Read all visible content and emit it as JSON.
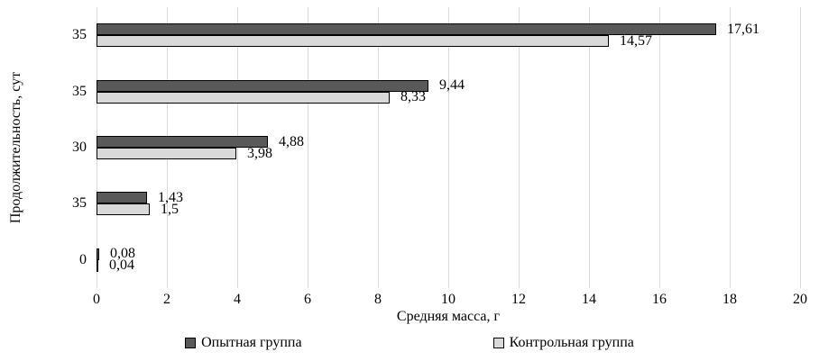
{
  "chart_data": {
    "type": "bar",
    "orientation": "horizontal",
    "categories": [
      "35",
      "35",
      "30",
      "35",
      "0"
    ],
    "series": [
      {
        "name": "Опытная группа",
        "color": "#595959",
        "values": [
          17.61,
          9.44,
          4.88,
          1.43,
          0.08
        ],
        "labels": [
          "17,61",
          "9,44",
          "4,88",
          "1,43",
          "0,08"
        ]
      },
      {
        "name": "Контрольная группа",
        "color": "#d9d9d9",
        "values": [
          14.57,
          8.33,
          3.98,
          1.5,
          0.04
        ],
        "labels": [
          "14,57",
          "8,33",
          "3,98",
          "1,5",
          "0,04"
        ]
      }
    ],
    "xlabel": "Средняя масса, г",
    "ylabel": "Продолжительность, сут",
    "xlim": [
      0,
      20
    ],
    "xticks": [
      0,
      2,
      4,
      6,
      8,
      10,
      12,
      14,
      16,
      18,
      20
    ],
    "grid": true,
    "gridline_color": "#d9d9d9",
    "bar_border_color": "#000000",
    "legend_position": "bottom"
  }
}
